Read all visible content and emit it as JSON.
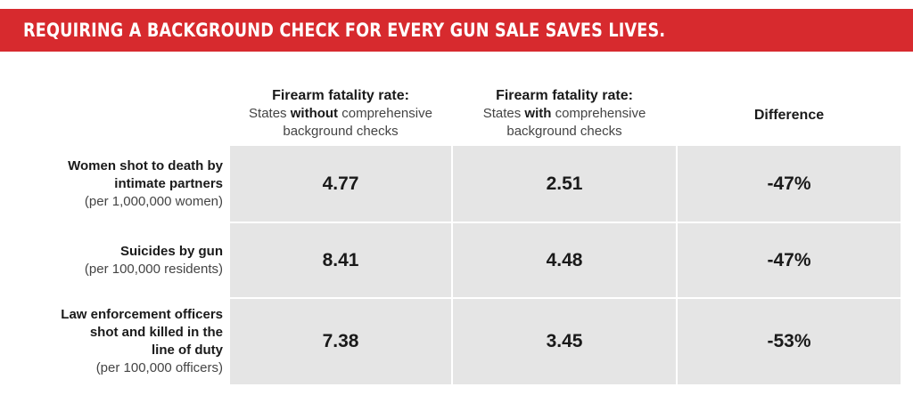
{
  "banner": {
    "title": "REQUIRING A BACKGROUND CHECK FOR EVERY GUN SALE SAVES LIVES."
  },
  "columns": [
    {
      "title": "Firearm fatality rate:",
      "sub_pre": "States ",
      "sub_bold": "without",
      "sub_post": " comprehensive",
      "sub_line2": "background checks"
    },
    {
      "title": "Firearm fatality rate:",
      "sub_pre": "States ",
      "sub_bold": "with",
      "sub_post": " comprehensive",
      "sub_line2": "background checks"
    },
    {
      "title": "Difference"
    }
  ],
  "rows": [
    {
      "label_lines": [
        "Women shot to death by",
        "intimate partners"
      ],
      "unit": "(per 1,000,000 women)",
      "without": "4.77",
      "with": "2.51",
      "difference": "-47%"
    },
    {
      "label_lines": [
        "Suicides by gun"
      ],
      "unit": "(per 100,000 residents)",
      "without": "8.41",
      "with": "4.48",
      "difference": "-47%"
    },
    {
      "label_lines": [
        "Law enforcement officers",
        "shot and killed in the",
        "line of duty"
      ],
      "unit": "(per 100,000 officers)",
      "without": "7.38",
      "with": "3.45",
      "difference": "-53%"
    }
  ],
  "colors": {
    "banner": "#d72a2e",
    "cell": "#e5e5e5"
  }
}
